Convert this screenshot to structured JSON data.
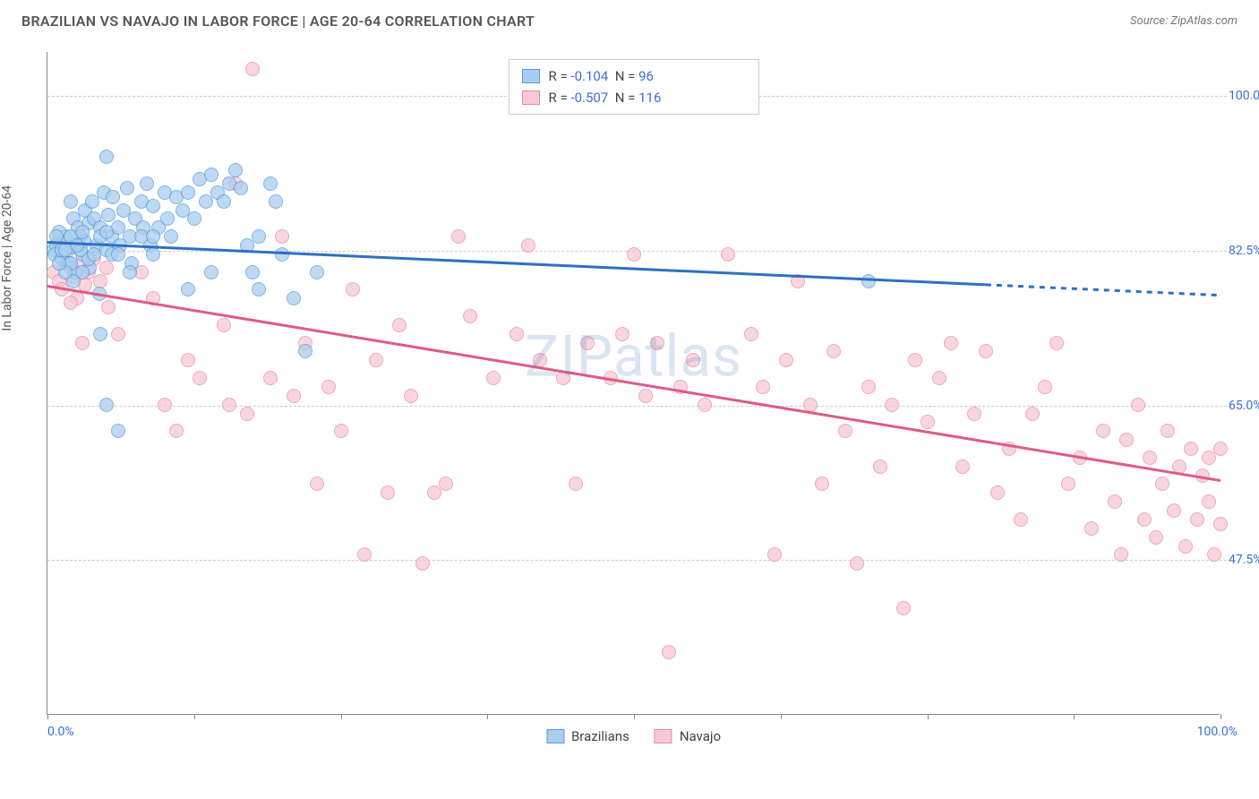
{
  "title": "BRAZILIAN VS NAVAJO IN LABOR FORCE | AGE 20-64 CORRELATION CHART",
  "source": "Source: ZipAtlas.com",
  "watermark": "ZIPatlas",
  "ylabel": "In Labor Force | Age 20-64",
  "chart": {
    "type": "scatter",
    "xlim": [
      0,
      100
    ],
    "ylim": [
      30,
      105
    ],
    "x_start_label": "0.0%",
    "x_end_label": "100.0%",
    "y_ticks": [
      47.5,
      65.0,
      82.5,
      100.0
    ],
    "y_tick_labels": [
      "47.5%",
      "65.0%",
      "82.5%",
      "100.0%"
    ],
    "x_tick_positions": [
      0,
      12.5,
      25,
      37.5,
      50,
      62.5,
      75,
      87.5,
      100
    ],
    "grid_color": "#cccccc",
    "background_color": "#ffffff",
    "axis_color": "#888888",
    "axis_label_color": "#3a6fd8",
    "marker_radius": 8,
    "marker_border_width": 1.2,
    "trend_line_width": 3
  },
  "series": [
    {
      "name": "Brazilians",
      "fill": "#a9cdf0",
      "stroke": "#5a9bd5",
      "line_color": "#2f6fc4",
      "R": "-0.104",
      "N": "96",
      "trend": {
        "x1": 0,
        "y1": 83.5,
        "x2": 100,
        "y2": 77.5,
        "solid_to_x": 80
      },
      "points": [
        [
          0.5,
          82.5
        ],
        [
          0.8,
          83.0
        ],
        [
          0.6,
          82.0
        ],
        [
          1.0,
          83.5
        ],
        [
          1.2,
          81.5
        ],
        [
          1.5,
          84.0
        ],
        [
          1.0,
          84.5
        ],
        [
          1.8,
          81.0
        ],
        [
          2.0,
          82.8
        ],
        [
          2.2,
          86.0
        ],
        [
          2.0,
          88.0
        ],
        [
          2.4,
          80.0
        ],
        [
          2.6,
          85.0
        ],
        [
          2.8,
          84.0
        ],
        [
          2.2,
          79.0
        ],
        [
          3.0,
          82.0
        ],
        [
          3.2,
          87.0
        ],
        [
          3.1,
          83.5
        ],
        [
          3.5,
          85.5
        ],
        [
          3.6,
          80.5
        ],
        [
          3.8,
          88.0
        ],
        [
          4.0,
          86.0
        ],
        [
          4.2,
          83.0
        ],
        [
          4.5,
          85.0
        ],
        [
          4.4,
          77.5
        ],
        [
          4.8,
          89.0
        ],
        [
          5.0,
          82.5
        ],
        [
          5.2,
          86.5
        ],
        [
          5.5,
          84.0
        ],
        [
          5.6,
          88.5
        ],
        [
          5.0,
          93.0
        ],
        [
          5.0,
          65.0
        ],
        [
          6.0,
          85.0
        ],
        [
          6.2,
          83.0
        ],
        [
          6.5,
          87.0
        ],
        [
          6.8,
          89.5
        ],
        [
          7.0,
          84.0
        ],
        [
          7.2,
          81.0
        ],
        [
          7.5,
          86.0
        ],
        [
          6.0,
          62.0
        ],
        [
          8.0,
          88.0
        ],
        [
          8.2,
          85.0
        ],
        [
          8.5,
          90.0
        ],
        [
          8.8,
          83.0
        ],
        [
          9.0,
          87.5
        ],
        [
          9.5,
          85.0
        ],
        [
          10.0,
          89.0
        ],
        [
          10.2,
          86.0
        ],
        [
          10.5,
          84.0
        ],
        [
          11.0,
          88.5
        ],
        [
          11.5,
          87.0
        ],
        [
          12.0,
          89.0
        ],
        [
          12.5,
          86.0
        ],
        [
          13.0,
          90.5
        ],
        [
          13.5,
          88.0
        ],
        [
          14.0,
          91.0
        ],
        [
          14.5,
          89.0
        ],
        [
          15.0,
          88.0
        ],
        [
          15.5,
          90.0
        ],
        [
          16.0,
          91.5
        ],
        [
          16.5,
          89.5
        ],
        [
          17.0,
          83.0
        ],
        [
          17.5,
          80.0
        ],
        [
          18.0,
          84.0
        ],
        [
          19.0,
          90.0
        ],
        [
          19.5,
          88.0
        ],
        [
          20.0,
          82.0
        ],
        [
          21.0,
          77.0
        ],
        [
          22.0,
          71.0
        ],
        [
          23.0,
          80.0
        ],
        [
          14.0,
          80.0
        ],
        [
          9.0,
          82.0
        ],
        [
          2.0,
          81.0
        ],
        [
          3.5,
          81.5
        ],
        [
          1.5,
          80.0
        ],
        [
          2.8,
          82.5
        ],
        [
          4.0,
          82.0
        ],
        [
          4.5,
          84.0
        ],
        [
          5.0,
          84.5
        ],
        [
          5.5,
          82.0
        ],
        [
          6.0,
          82.0
        ],
        [
          0.8,
          84.0
        ],
        [
          1.2,
          82.5
        ],
        [
          2.0,
          84.0
        ],
        [
          2.5,
          83.0
        ],
        [
          3.0,
          84.5
        ],
        [
          1.0,
          81.0
        ],
        [
          1.5,
          82.5
        ],
        [
          7.0,
          80.0
        ],
        [
          8.0,
          84.0
        ],
        [
          9.0,
          84.0
        ],
        [
          3.0,
          80.0
        ],
        [
          4.5,
          73.0
        ],
        [
          12.0,
          78.0
        ],
        [
          18.0,
          78.0
        ],
        [
          70.0,
          79.0
        ]
      ]
    },
    {
      "name": "Navajo",
      "fill": "#f8c9d4",
      "stroke": "#e88ba5",
      "line_color": "#e05a85",
      "R": "-0.507",
      "N": "116",
      "trend": {
        "x1": 0,
        "y1": 78.5,
        "x2": 100,
        "y2": 56.5,
        "solid_to_x": 100
      },
      "points": [
        [
          0.5,
          80.0
        ],
        [
          1.0,
          79.0
        ],
        [
          1.5,
          81.0
        ],
        [
          1.2,
          78.0
        ],
        [
          2.0,
          80.5
        ],
        [
          2.2,
          79.5
        ],
        [
          2.5,
          77.0
        ],
        [
          3.0,
          81.0
        ],
        [
          3.2,
          78.5
        ],
        [
          1.8,
          82.5
        ],
        [
          2.0,
          76.5
        ],
        [
          3.5,
          80.0
        ],
        [
          4.0,
          81.5
        ],
        [
          4.5,
          79.0
        ],
        [
          5.0,
          80.5
        ],
        [
          5.2,
          76.0
        ],
        [
          3.0,
          72.0
        ],
        [
          6.0,
          73.0
        ],
        [
          8.0,
          80.0
        ],
        [
          9.0,
          77.0
        ],
        [
          10.0,
          65.0
        ],
        [
          11.0,
          62.0
        ],
        [
          12.0,
          70.0
        ],
        [
          13.0,
          68.0
        ],
        [
          15.0,
          74.0
        ],
        [
          15.5,
          65.0
        ],
        [
          16.0,
          90.0
        ],
        [
          17.0,
          64.0
        ],
        [
          17.5,
          103.0
        ],
        [
          19.0,
          68.0
        ],
        [
          20.0,
          84.0
        ],
        [
          21.0,
          66.0
        ],
        [
          22.0,
          72.0
        ],
        [
          23.0,
          56.0
        ],
        [
          24.0,
          67.0
        ],
        [
          25.0,
          62.0
        ],
        [
          26.0,
          78.0
        ],
        [
          27.0,
          48.0
        ],
        [
          28.0,
          70.0
        ],
        [
          29.0,
          55.0
        ],
        [
          30.0,
          74.0
        ],
        [
          31.0,
          66.0
        ],
        [
          32.0,
          47.0
        ],
        [
          33.0,
          55.0
        ],
        [
          34.0,
          56.0
        ],
        [
          35.0,
          84.0
        ],
        [
          36.0,
          75.0
        ],
        [
          38.0,
          68.0
        ],
        [
          40.0,
          73.0
        ],
        [
          41.0,
          83.0
        ],
        [
          42.0,
          70.0
        ],
        [
          44.0,
          68.0
        ],
        [
          45.0,
          56.0
        ],
        [
          46.0,
          72.0
        ],
        [
          48.0,
          68.0
        ],
        [
          49.0,
          73.0
        ],
        [
          50.0,
          82.0
        ],
        [
          51.0,
          66.0
        ],
        [
          52.0,
          72.0
        ],
        [
          53.0,
          37.0
        ],
        [
          54.0,
          67.0
        ],
        [
          55.0,
          70.0
        ],
        [
          56.0,
          65.0
        ],
        [
          58.0,
          82.0
        ],
        [
          60.0,
          73.0
        ],
        [
          59.0,
          103.0
        ],
        [
          61.0,
          67.0
        ],
        [
          62.0,
          48.0
        ],
        [
          63.0,
          70.0
        ],
        [
          64.0,
          79.0
        ],
        [
          65.0,
          65.0
        ],
        [
          66.0,
          56.0
        ],
        [
          67.0,
          71.0
        ],
        [
          68.0,
          62.0
        ],
        [
          69.0,
          47.0
        ],
        [
          70.0,
          67.0
        ],
        [
          71.0,
          58.0
        ],
        [
          72.0,
          65.0
        ],
        [
          73.0,
          42.0
        ],
        [
          74.0,
          70.0
        ],
        [
          75.0,
          63.0
        ],
        [
          76.0,
          68.0
        ],
        [
          77.0,
          72.0
        ],
        [
          78.0,
          58.0
        ],
        [
          79.0,
          64.0
        ],
        [
          80.0,
          71.0
        ],
        [
          81.0,
          55.0
        ],
        [
          82.0,
          60.0
        ],
        [
          83.0,
          52.0
        ],
        [
          84.0,
          64.0
        ],
        [
          85.0,
          67.0
        ],
        [
          86.0,
          72.0
        ],
        [
          87.0,
          56.0
        ],
        [
          88.0,
          59.0
        ],
        [
          89.0,
          51.0
        ],
        [
          90.0,
          62.0
        ],
        [
          91.0,
          54.0
        ],
        [
          91.5,
          48.0
        ],
        [
          92.0,
          61.0
        ],
        [
          93.0,
          65.0
        ],
        [
          93.5,
          52.0
        ],
        [
          94.0,
          59.0
        ],
        [
          94.5,
          50.0
        ],
        [
          95.0,
          56.0
        ],
        [
          95.5,
          62.0
        ],
        [
          96.0,
          53.0
        ],
        [
          96.5,
          58.0
        ],
        [
          97.0,
          49.0
        ],
        [
          97.5,
          60.0
        ],
        [
          98.0,
          52.0
        ],
        [
          98.5,
          57.0
        ],
        [
          99.0,
          54.0
        ],
        [
          99.5,
          48.0
        ],
        [
          100.0,
          60.0
        ],
        [
          100.0,
          51.5
        ],
        [
          99.0,
          59.0
        ]
      ]
    }
  ],
  "legend_labels": {
    "R_prefix": "R = ",
    "N_prefix": "N = "
  }
}
